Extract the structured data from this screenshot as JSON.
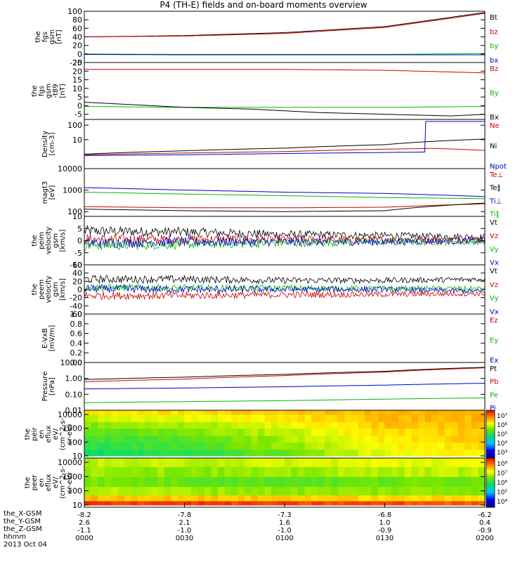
{
  "title": "P4 (TH-E) fields and on-board moments overview",
  "chart_data": [
    {
      "type": "line",
      "ylabel": [
        "the",
        "fgs",
        "gsm",
        "[nT]"
      ],
      "yticks": [
        "100",
        "80",
        "60",
        "40",
        "20",
        "0",
        "-20"
      ],
      "ylim": [
        -20,
        100
      ],
      "legend": [
        {
          "label": "Bt",
          "color": "#000000"
        },
        {
          "label": "bz",
          "color": "#cc0000"
        },
        {
          "label": "by",
          "color": "#00bb00"
        },
        {
          "label": "bx",
          "color": "#0000cc"
        }
      ],
      "series": [
        {
          "name": "Bt",
          "color": "#000000",
          "x": [
            0,
            30,
            60,
            90,
            120
          ],
          "values": [
            40,
            43,
            50,
            64,
            97
          ]
        },
        {
          "name": "bz",
          "color": "#cc0000",
          "x": [
            0,
            30,
            60,
            90,
            120
          ],
          "values": [
            40,
            42,
            48,
            62,
            95
          ]
        },
        {
          "name": "by",
          "color": "#00bb00",
          "x": [
            0,
            30,
            60,
            90,
            120
          ],
          "values": [
            0,
            -1,
            -1,
            -1,
            1
          ]
        },
        {
          "name": "bx",
          "color": "#0000cc",
          "x": [
            0,
            30,
            60,
            90,
            120
          ],
          "values": [
            -1,
            -2,
            -2,
            -2,
            -2
          ]
        }
      ]
    },
    {
      "type": "line",
      "ylabel": [
        "the",
        "fgs",
        "gsm",
        "-t89",
        "[nT]"
      ],
      "yticks": [
        "25",
        "20",
        "15",
        "10",
        "5",
        "0",
        "-5"
      ],
      "ylim": [
        -8,
        25
      ],
      "legend": [
        {
          "label": "Bz",
          "color": "#cc0000"
        },
        {
          "label": "By",
          "color": "#00bb00"
        },
        {
          "label": "Bx",
          "color": "#000000"
        }
      ],
      "series": [
        {
          "name": "Bz",
          "color": "#cc0000",
          "x": [
            0,
            30,
            60,
            90,
            120
          ],
          "values": [
            21,
            21,
            21,
            20.5,
            19
          ]
        },
        {
          "name": "By",
          "color": "#00bb00",
          "x": [
            0,
            30,
            60,
            90,
            120
          ],
          "values": [
            -0.5,
            -1,
            -1,
            -1,
            -0.5
          ]
        },
        {
          "name": "Bx",
          "color": "#000000",
          "x": [
            0,
            10,
            30,
            50,
            70,
            90,
            110,
            120
          ],
          "values": [
            2,
            1,
            -1,
            -2,
            -4,
            -5,
            -6,
            -5
          ]
        }
      ]
    },
    {
      "type": "line",
      "log": true,
      "ylabel": [
        "Density",
        "[cm-3]"
      ],
      "yticks": [
        "100",
        "10"
      ],
      "ylim": [
        0.1,
        250
      ],
      "legend": [
        {
          "label": "Ne",
          "color": "#cc0000"
        },
        {
          "label": "Ni",
          "color": "#000000"
        },
        {
          "label": "Npot",
          "color": "#0000cc"
        }
      ],
      "series": [
        {
          "name": "Ni",
          "color": "#000000",
          "x": [
            0,
            30,
            60,
            90,
            120
          ],
          "values": [
            1.0,
            1.7,
            2.6,
            4.5,
            11
          ]
        },
        {
          "name": "Ne",
          "color": "#cc0000",
          "x": [
            0,
            30,
            60,
            90,
            105,
            120
          ],
          "values": [
            0.9,
            1.2,
            1.5,
            2.2,
            2.5,
            1.8
          ]
        },
        {
          "name": "Npot",
          "color": "#0000cc",
          "x": [
            0,
            30,
            60,
            90,
            102,
            102.1,
            120
          ],
          "values": [
            0.8,
            0.9,
            1.1,
            1.3,
            1.4,
            180,
            180
          ]
        }
      ]
    },
    {
      "type": "line",
      "log": true,
      "ylabel": [
        "magt3",
        "[eV]"
      ],
      "yticks": [
        "10000",
        "1000",
        "100"
      ],
      "ylim": [
        60,
        10000
      ],
      "legend": [
        {
          "label": "Te⊥",
          "color": "#cc0000"
        },
        {
          "label": "Te∥",
          "color": "#000000"
        },
        {
          "label": "Ti⊥",
          "color": "#0000cc"
        },
        {
          "label": "Ti∥",
          "color": "#00bb00"
        }
      ],
      "series": [
        {
          "name": "Ti⊥",
          "color": "#0000cc",
          "x": [
            0,
            30,
            60,
            90,
            120
          ],
          "values": [
            1300,
            1000,
            800,
            700,
            500
          ]
        },
        {
          "name": "Ti∥",
          "color": "#00bb00",
          "x": [
            0,
            30,
            60,
            90,
            120
          ],
          "values": [
            800,
            650,
            550,
            450,
            400
          ]
        },
        {
          "name": "Te⊥",
          "color": "#cc0000",
          "x": [
            0,
            30,
            60,
            90,
            120
          ],
          "values": [
            170,
            150,
            150,
            160,
            230
          ]
        },
        {
          "name": "Te∥",
          "color": "#000000",
          "x": [
            0,
            30,
            60,
            90,
            120
          ],
          "values": [
            130,
            110,
            100,
            110,
            250
          ]
        }
      ]
    },
    {
      "type": "line",
      "ylabel": [
        "the",
        "peim",
        "velocity",
        "gsm",
        "[km/s]"
      ],
      "yticks": [
        "10",
        "5",
        "0",
        "-5",
        "-10"
      ],
      "ylim": [
        -10,
        10
      ],
      "legend": [
        {
          "label": "Vt",
          "color": "#000000"
        },
        {
          "label": "Vz",
          "color": "#cc0000"
        },
        {
          "label": "Vy",
          "color": "#00bb00"
        },
        {
          "label": "Vx",
          "color": "#0000cc"
        }
      ],
      "series": [
        {
          "name": "Vt",
          "color": "#000000",
          "x": [
            0,
            30,
            60,
            90,
            120
          ],
          "values": [
            4,
            3.5,
            2.5,
            2,
            1.5
          ]
        },
        {
          "name": "Vz",
          "color": "#cc0000",
          "x": [
            0,
            30,
            60,
            90,
            120
          ],
          "values": [
            0.5,
            0.5,
            0.5,
            0.3,
            0.5
          ]
        },
        {
          "name": "Vy",
          "color": "#00bb00",
          "x": [
            0,
            30,
            60,
            90,
            120
          ],
          "values": [
            -2,
            -1.5,
            -1,
            -0.5,
            -0.5
          ]
        },
        {
          "name": "Vx",
          "color": "#0000cc",
          "x": [
            0,
            30,
            60,
            90,
            120
          ],
          "values": [
            -1,
            -0.5,
            -0.5,
            -0.5,
            0
          ]
        }
      ]
    },
    {
      "type": "line",
      "ylabel": [
        "the",
        "peem",
        "velocity",
        "gsm",
        "[km/s]"
      ],
      "yticks": [
        "60",
        "40",
        "20",
        "0",
        "-20",
        "-40",
        "-60"
      ],
      "ylim": [
        -60,
        60
      ],
      "legend": [
        {
          "label": "Vt",
          "color": "#000000"
        },
        {
          "label": "Vz",
          "color": "#cc0000"
        },
        {
          "label": "Vy",
          "color": "#00bb00"
        },
        {
          "label": "Vx",
          "color": "#0000cc"
        }
      ],
      "series": [
        {
          "name": "Vt",
          "color": "#000000",
          "x": [
            0,
            30,
            60,
            90,
            120
          ],
          "values": [
            25,
            25,
            22,
            22,
            25
          ]
        },
        {
          "name": "Vy",
          "color": "#00bb00",
          "x": [
            0,
            30,
            60,
            90,
            120
          ],
          "values": [
            5,
            3,
            3,
            2,
            2
          ]
        },
        {
          "name": "Vx",
          "color": "#0000cc",
          "x": [
            0,
            30,
            60,
            90,
            120
          ],
          "values": [
            2,
            0,
            0,
            0,
            -5
          ]
        },
        {
          "name": "Vz",
          "color": "#cc0000",
          "x": [
            0,
            30,
            60,
            90,
            120
          ],
          "values": [
            -15,
            -15,
            -13,
            -12,
            -10
          ]
        }
      ]
    },
    {
      "type": "line",
      "ylabel": [
        "E-VxB",
        "[mV/m]"
      ],
      "yticks": [
        "1.0",
        "0.8",
        "0.6",
        "0.4",
        "0.2",
        "0.0"
      ],
      "ylim": [
        0,
        1
      ],
      "legend": [
        {
          "label": "Ez",
          "color": "#cc0000"
        },
        {
          "label": "Ey",
          "color": "#00bb00"
        },
        {
          "label": "Ex",
          "color": "#0000cc"
        }
      ],
      "series": []
    },
    {
      "type": "line",
      "log": true,
      "ylabel": [
        "Pressure",
        "[nPa]"
      ],
      "yticks": [
        "10.00",
        "1.00",
        "0.10",
        "0.01"
      ],
      "ylim": [
        0.01,
        10
      ],
      "legend": [
        {
          "label": "Pt",
          "color": "#000000"
        },
        {
          "label": "Pb",
          "color": "#cc0000"
        },
        {
          "label": "Pe",
          "color": "#00bb00"
        },
        {
          "label": "Pi",
          "color": "#0000cc"
        }
      ],
      "series": [
        {
          "name": "Pt",
          "color": "#000000",
          "x": [
            0,
            30,
            60,
            90,
            120
          ],
          "values": [
            0.85,
            1.2,
            1.8,
            2.8,
            5
          ]
        },
        {
          "name": "Pb",
          "color": "#cc0000",
          "x": [
            0,
            30,
            60,
            90,
            120
          ],
          "values": [
            0.62,
            0.9,
            1.5,
            2.5,
            4.6
          ]
        },
        {
          "name": "Pi",
          "color": "#0000cc",
          "x": [
            0,
            30,
            60,
            90,
            120
          ],
          "values": [
            0.22,
            0.25,
            0.3,
            0.38,
            0.5
          ]
        },
        {
          "name": "Pe",
          "color": "#00bb00",
          "x": [
            0,
            30,
            60,
            90,
            120
          ],
          "values": [
            0.03,
            0.035,
            0.04,
            0.05,
            0.06
          ]
        }
      ]
    },
    {
      "type": "heatmap",
      "ylabel": [
        "the",
        "peir",
        "en",
        "eflux",
        "eV/",
        "(cm^2-s-",
        "sr-eV)"
      ],
      "yticks": [
        "10000",
        "1000",
        "100",
        "10"
      ],
      "ylim": [
        7,
        20000
      ],
      "colorbar_ticks": [
        "10⁷",
        "10⁶",
        "10⁵",
        "10⁴",
        "10³"
      ],
      "colorbar_range": [
        2.5,
        7.5
      ],
      "energy_bands": [
        10,
        30,
        100,
        300,
        1000,
        3000,
        10000,
        20000
      ],
      "times": [
        0,
        30,
        60,
        90,
        120
      ],
      "values_log10": [
        [
          4.8,
          5.0,
          5.4,
          6.0,
          6.2
        ],
        [
          5.0,
          5.2,
          5.6,
          6.1,
          6.3
        ],
        [
          5.1,
          5.3,
          5.7,
          6.2,
          6.4
        ],
        [
          5.3,
          5.5,
          5.8,
          6.3,
          6.4
        ],
        [
          5.5,
          5.7,
          6.0,
          6.4,
          6.5
        ],
        [
          5.8,
          6.0,
          6.2,
          6.5,
          6.5
        ],
        [
          6.2,
          6.3,
          6.4,
          6.5,
          6.5
        ]
      ]
    },
    {
      "type": "heatmap",
      "ylabel": [
        "the",
        "peer",
        "en",
        "eflux",
        "eV/",
        "(cm^2-s-",
        "sr-eV)"
      ],
      "yticks": [
        "10000",
        "1000",
        "100",
        "10"
      ],
      "ylim": [
        7,
        20000
      ],
      "colorbar_ticks": [
        "10⁸",
        "10⁷",
        "10⁶",
        "10⁵",
        "10⁴"
      ],
      "colorbar_range": [
        3.5,
        8.5
      ],
      "energy_bands": [
        10,
        20,
        50,
        200,
        1000,
        5000,
        20000
      ],
      "times": [
        0,
        30,
        60,
        90,
        120
      ],
      "values_log10": [
        [
          8.2,
          8.2,
          8.1,
          8.1,
          8.0
        ],
        [
          7.5,
          7.4,
          7.4,
          7.3,
          7.3
        ],
        [
          6.8,
          6.7,
          6.6,
          6.6,
          6.6
        ],
        [
          6.5,
          6.4,
          6.3,
          6.4,
          6.5
        ],
        [
          6.7,
          6.6,
          6.6,
          6.8,
          6.8
        ],
        [
          6.8,
          6.8,
          6.9,
          7.0,
          7.0
        ]
      ]
    }
  ],
  "x_axis": {
    "range": [
      0,
      120
    ],
    "tick_minutes": [
      0,
      30,
      60,
      90,
      120
    ],
    "rows": [
      {
        "label": "the_X-GSM",
        "values": [
          "-8.2",
          "-7.8",
          "-7.3",
          "-6.8",
          "-6.2"
        ]
      },
      {
        "label": "the_Y-GSM",
        "values": [
          "2.6",
          "2.1",
          "1.6",
          "1.0",
          "0.4"
        ]
      },
      {
        "label": "the_Z-GSM",
        "values": [
          "-1.1",
          "-1.0",
          "-1.0",
          "-0.9",
          "-0.9"
        ]
      },
      {
        "label": "hhmm",
        "values": [
          "0000",
          "0030",
          "0100",
          "0130",
          "0200"
        ]
      }
    ],
    "date": "2013 Oct 04"
  }
}
